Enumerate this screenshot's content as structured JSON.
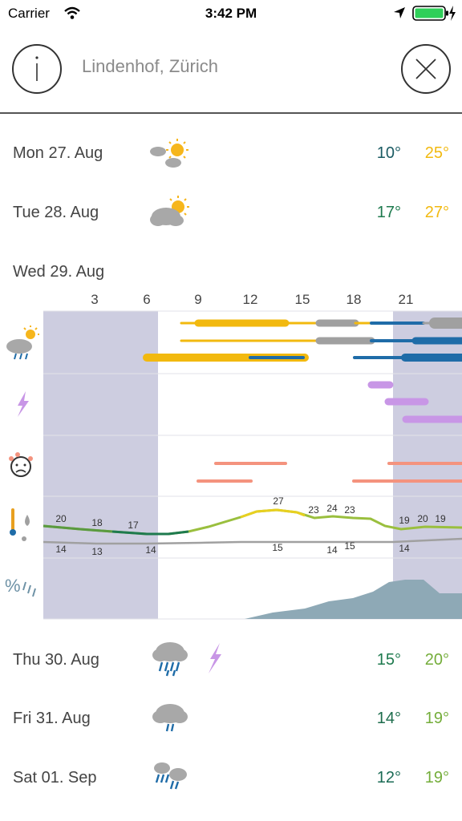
{
  "status_bar": {
    "carrier": "Carrier",
    "time": "3:42 PM"
  },
  "header": {
    "location": "Lindenhof, Zürich",
    "info_icon": "info-icon",
    "close_icon": "close-icon"
  },
  "days": [
    {
      "label": "Mon 27. Aug",
      "icon": "partly-sunny-icon",
      "tmin": "10°",
      "tmax": "25°",
      "tmin_color": "#1b5b63",
      "tmax_color": "#f2b90f"
    },
    {
      "label": "Tue 28. Aug",
      "icon": "cloud-sun-icon",
      "tmin": "17°",
      "tmax": "27°",
      "tmin_color": "#1e7a4e",
      "tmax_color": "#f2b90f"
    },
    {
      "label": "Wed 29. Aug"
    },
    {
      "label": "Thu 30. Aug",
      "icon": "heavy-rain-icon",
      "extra_icon": "lightning-icon",
      "tmin": "15°",
      "tmax": "20°",
      "tmin_color": "#1e7a4e",
      "tmax_color": "#74ad3a"
    },
    {
      "label": "Fri 31. Aug",
      "icon": "rain-icon",
      "tmin": "14°",
      "tmax": "19°",
      "tmin_color": "#1e6d4d",
      "tmax_color": "#74ad3a"
    },
    {
      "label": "Sat 01. Sep",
      "icon": "showers-icon",
      "tmin": "12°",
      "tmax": "19°",
      "tmin_color": "#1b6b55",
      "tmax_color": "#74ad3a"
    }
  ],
  "chart": {
    "hour_labels": [
      "3",
      "6",
      "9",
      "12",
      "15",
      "18",
      "21"
    ],
    "row_icons": [
      "weather-icon",
      "lightning-icon",
      "uv-face-icon",
      "temperature-icon",
      "precipitation-percent-icon"
    ],
    "temp_labels": [
      "20",
      "18",
      "17",
      "27",
      "23",
      "24",
      "23",
      "19",
      "20",
      "19"
    ],
    "dew_labels": [
      "14",
      "13",
      "14",
      "15",
      "14",
      "15",
      "14"
    ],
    "colors": {
      "night_shade": "#cdcde0",
      "sun": "#f2b90f",
      "cloud": "#a0a0a0",
      "rain": "#1f6ca8",
      "lightning": "#c896e6",
      "uv": "#f4937e",
      "precip": "#8ea9b6"
    }
  }
}
